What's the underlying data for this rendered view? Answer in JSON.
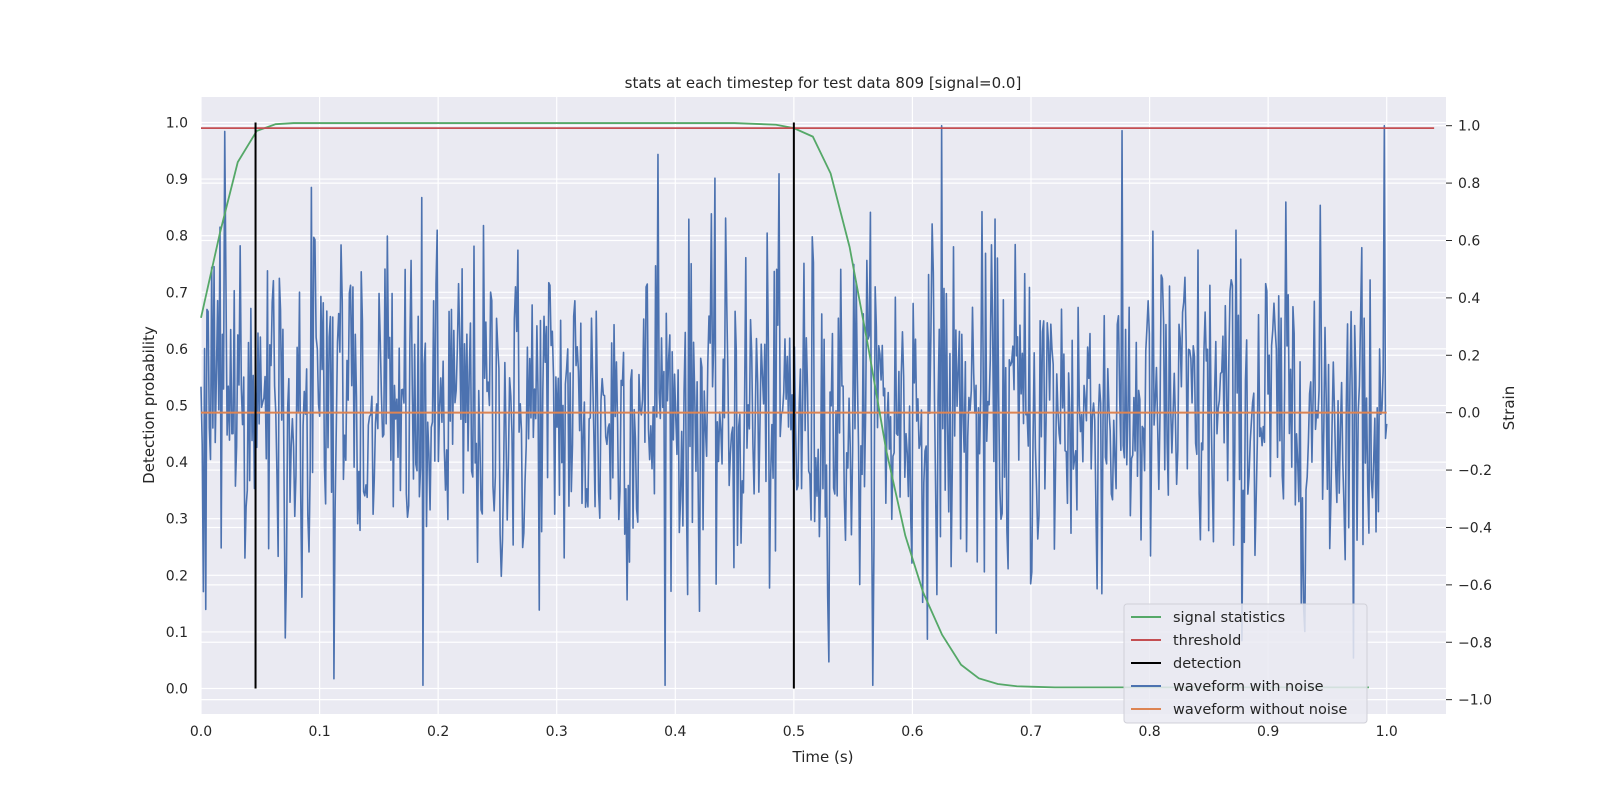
{
  "chart_data": {
    "type": "line",
    "title": "stats at each timestep for test data 809 [signal=0.0]",
    "xlabel": "Time (s)",
    "ylabel": "Detection probability",
    "ylabel_right": "Strain",
    "xlim": [
      0.0,
      1.05
    ],
    "ylim": [
      -0.045,
      1.045
    ],
    "ylim_right": [
      -1.05,
      1.1
    ],
    "xticks": [
      "0.0",
      "0.1",
      "0.2",
      "0.3",
      "0.4",
      "0.5",
      "0.6",
      "0.7",
      "0.8",
      "0.9",
      "1.0"
    ],
    "yticks": [
      "0.0",
      "0.1",
      "0.2",
      "0.3",
      "0.4",
      "0.5",
      "0.6",
      "0.7",
      "0.8",
      "0.9",
      "1.0"
    ],
    "yticks_right": [
      "−1.0",
      "−0.8",
      "−0.6",
      "−0.4",
      "−0.2",
      "0.0",
      "0.2",
      "0.4",
      "0.6",
      "0.8",
      "1.0"
    ],
    "grid": true,
    "legend_position": "lower right",
    "series": [
      {
        "name": "signal statistics",
        "color": "#55a868",
        "axis": "left",
        "x": [
          0.0,
          0.016,
          0.031,
          0.047,
          0.063,
          0.078,
          0.1,
          0.2,
          0.3,
          0.4,
          0.45,
          0.485,
          0.5,
          0.516,
          0.531,
          0.547,
          0.563,
          0.578,
          0.594,
          0.609,
          0.625,
          0.641,
          0.656,
          0.672,
          0.688,
          0.703,
          0.72,
          0.75,
          0.8,
          0.85,
          0.9,
          0.95,
          0.985
        ],
        "values": [
          0.655,
          0.805,
          0.93,
          0.985,
          0.997,
          0.999,
          0.999,
          0.999,
          0.999,
          0.999,
          0.999,
          0.996,
          0.99,
          0.975,
          0.91,
          0.78,
          0.6,
          0.42,
          0.27,
          0.17,
          0.095,
          0.042,
          0.018,
          0.008,
          0.004,
          0.003,
          0.002,
          0.002,
          0.002,
          0.002,
          0.002,
          0.002,
          0.002
        ]
      },
      {
        "name": "threshold",
        "color": "#c44e52",
        "axis": "left",
        "x": [
          0.0,
          1.04
        ],
        "values": [
          0.99,
          0.99
        ]
      },
      {
        "name": "detection",
        "color": "#000000",
        "axis": "left",
        "segments": [
          {
            "x": 0.046,
            "y0": 0.0,
            "y1": 1.0
          },
          {
            "x": 0.5,
            "y0": 0.0,
            "y1": 1.0
          }
        ]
      },
      {
        "name": "waveform with noise",
        "color": "#4c72b0",
        "axis": "right",
        "x_range": [
          0.0,
          1.0
        ],
        "n_points": 1000,
        "approx_std": 0.3,
        "approx_range": [
          -0.95,
          1.0
        ],
        "notable_spikes": [
          {
            "x": 0.02,
            "y": 0.98
          },
          {
            "x": 0.187,
            "y": -0.95
          },
          {
            "x": 0.385,
            "y": 0.9
          },
          {
            "x": 0.625,
            "y": 1.0
          },
          {
            "x": 0.998,
            "y": 1.0
          }
        ]
      },
      {
        "name": "waveform without noise",
        "color": "#dd8452",
        "axis": "right",
        "x": [
          0.0,
          1.0
        ],
        "values": [
          0.0,
          0.0
        ]
      }
    ]
  },
  "colors": {
    "plot_background": "#eaeaf2",
    "grid": "#ffffff",
    "text": "#262626"
  }
}
